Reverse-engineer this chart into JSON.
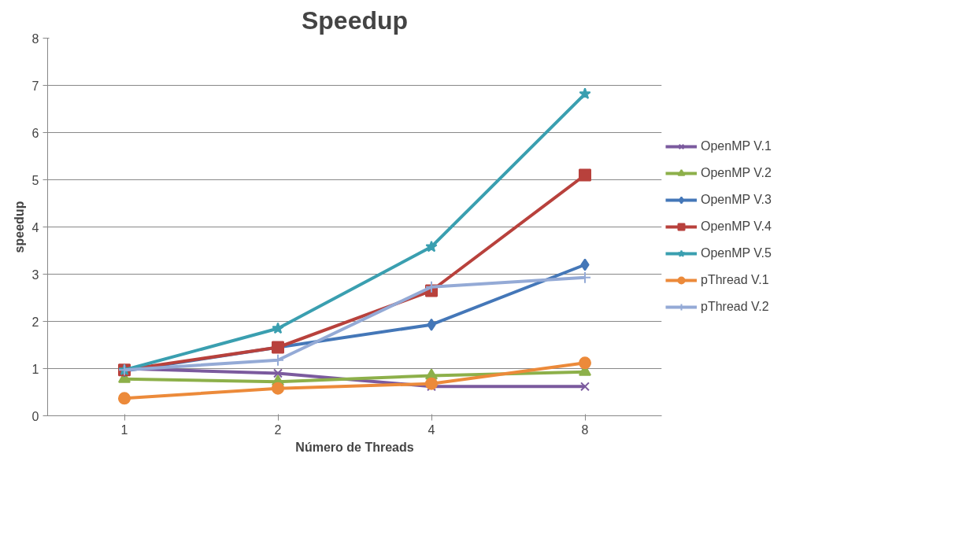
{
  "chart_data": {
    "type": "line",
    "title": "Speedup",
    "xlabel": "Número de Threads",
    "ylabel": "speedup",
    "categories": [
      "1",
      "2",
      "4",
      "8"
    ],
    "ylim": [
      0,
      8
    ],
    "yticks": [
      0,
      1,
      2,
      3,
      4,
      5,
      6,
      7,
      8
    ],
    "grid": "y",
    "legend": "right",
    "line_style": "solid",
    "series": [
      {
        "name": "OpenMP V.1",
        "color": "#7b5a9e",
        "marker": "x",
        "values": [
          1.0,
          0.9,
          0.62,
          0.62
        ]
      },
      {
        "name": "OpenMP V.2",
        "color": "#8db04a",
        "marker": "triangle",
        "values": [
          0.78,
          0.72,
          0.85,
          0.93
        ]
      },
      {
        "name": "OpenMP V.3",
        "color": "#4477b8",
        "marker": "diamond",
        "values": [
          0.95,
          1.45,
          1.93,
          3.2
        ]
      },
      {
        "name": "OpenMP V.4",
        "color": "#b8413c",
        "marker": "square",
        "values": [
          0.97,
          1.45,
          2.65,
          5.1
        ]
      },
      {
        "name": "OpenMP V.5",
        "color": "#3a9fb0",
        "marker": "star",
        "values": [
          0.97,
          1.85,
          3.58,
          6.82
        ]
      },
      {
        "name": "pThread V.1",
        "color": "#ec8a3a",
        "marker": "circle",
        "values": [
          0.37,
          0.58,
          0.68,
          1.12
        ]
      },
      {
        "name": "pThread V.2",
        "color": "#94aad6",
        "marker": "cross",
        "values": [
          0.97,
          1.18,
          2.73,
          2.93
        ]
      }
    ]
  }
}
